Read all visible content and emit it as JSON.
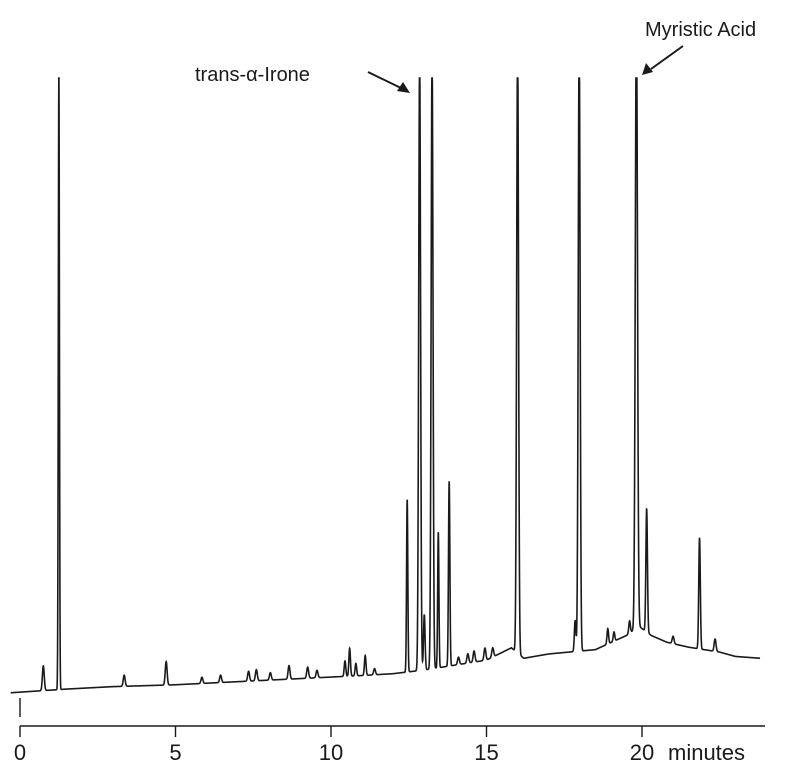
{
  "chart_data": {
    "type": "line",
    "title": "",
    "xlabel": "minutes",
    "ylabel": "",
    "xlim": [
      -0.3,
      24
    ],
    "ylim": [
      0,
      100
    ],
    "x_ticks": [
      0,
      5,
      10,
      15,
      20
    ],
    "x_tick_labels": [
      "0",
      "5",
      "10",
      "15",
      "20"
    ],
    "grid": false,
    "legend": "none",
    "line_color": "#1a1a1a",
    "baseline": [
      [
        -0.3,
        0.2
      ],
      [
        0.6,
        0.5
      ],
      [
        1.5,
        0.8
      ],
      [
        3.0,
        1.2
      ],
      [
        5.0,
        1.5
      ],
      [
        7.0,
        2.0
      ],
      [
        9.0,
        2.5
      ],
      [
        11.0,
        3.0
      ],
      [
        12.0,
        3.3
      ],
      [
        13.0,
        3.9
      ],
      [
        14.0,
        4.7
      ],
      [
        15.0,
        5.5
      ],
      [
        15.8,
        7.5
      ],
      [
        16.2,
        5.8
      ],
      [
        17.0,
        6.5
      ],
      [
        18.5,
        7.2
      ],
      [
        19.5,
        9.5
      ],
      [
        19.9,
        11.0
      ],
      [
        20.3,
        9.5
      ],
      [
        20.8,
        8.4
      ],
      [
        21.5,
        7.6
      ],
      [
        22.5,
        6.8
      ],
      [
        23.0,
        6.1
      ],
      [
        23.8,
        5.8
      ]
    ],
    "peaks": [
      {
        "rt": 0.75,
        "height": 4.0,
        "width": 0.03
      },
      {
        "rt": 1.25,
        "height": 100,
        "width": 0.018
      },
      {
        "rt": 3.35,
        "height": 1.8,
        "width": 0.03
      },
      {
        "rt": 4.7,
        "height": 3.8,
        "width": 0.03
      },
      {
        "rt": 5.85,
        "height": 1.0,
        "width": 0.03
      },
      {
        "rt": 6.45,
        "height": 1.2,
        "width": 0.03
      },
      {
        "rt": 7.35,
        "height": 1.6,
        "width": 0.03
      },
      {
        "rt": 7.6,
        "height": 1.8,
        "width": 0.03
      },
      {
        "rt": 8.05,
        "height": 1.2,
        "width": 0.03
      },
      {
        "rt": 8.65,
        "height": 2.2,
        "width": 0.03
      },
      {
        "rt": 9.25,
        "height": 1.8,
        "width": 0.03
      },
      {
        "rt": 9.55,
        "height": 1.2,
        "width": 0.03
      },
      {
        "rt": 10.45,
        "height": 2.5,
        "width": 0.025
      },
      {
        "rt": 10.6,
        "height": 4.5,
        "width": 0.025
      },
      {
        "rt": 10.8,
        "height": 2.0,
        "width": 0.025
      },
      {
        "rt": 11.1,
        "height": 3.2,
        "width": 0.025
      },
      {
        "rt": 11.4,
        "height": 1.0,
        "width": 0.03
      },
      {
        "rt": 12.45,
        "height": 28,
        "width": 0.02
      },
      {
        "rt": 12.85,
        "height": 100,
        "width": 0.03
      },
      {
        "rt": 13.0,
        "height": 9,
        "width": 0.025
      },
      {
        "rt": 13.25,
        "height": 100,
        "width": 0.03
      },
      {
        "rt": 13.45,
        "height": 22,
        "width": 0.02
      },
      {
        "rt": 13.8,
        "height": 30,
        "width": 0.022
      },
      {
        "rt": 14.1,
        "height": 1.2,
        "width": 0.03
      },
      {
        "rt": 14.4,
        "height": 1.5,
        "width": 0.03
      },
      {
        "rt": 14.6,
        "height": 1.8,
        "width": 0.03
      },
      {
        "rt": 14.95,
        "height": 2.0,
        "width": 0.03
      },
      {
        "rt": 15.2,
        "height": 1.5,
        "width": 0.03
      },
      {
        "rt": 16.0,
        "height": 100,
        "width": 0.03
      },
      {
        "rt": 17.85,
        "height": 5.0,
        "width": 0.025
      },
      {
        "rt": 17.98,
        "height": 100,
        "width": 0.03
      },
      {
        "rt": 18.9,
        "height": 2.5,
        "width": 0.025
      },
      {
        "rt": 19.1,
        "height": 1.5,
        "width": 0.025
      },
      {
        "rt": 19.6,
        "height": 2.0,
        "width": 0.025
      },
      {
        "rt": 19.82,
        "height": 100,
        "width": 0.035
      },
      {
        "rt": 20.15,
        "height": 20,
        "width": 0.025
      },
      {
        "rt": 21.0,
        "height": 1.2,
        "width": 0.03
      },
      {
        "rt": 21.85,
        "height": 18,
        "width": 0.025
      },
      {
        "rt": 22.35,
        "height": 2.0,
        "width": 0.03
      }
    ],
    "annotations": [
      {
        "text": "trans-α-Irone",
        "x": 12.85,
        "y": 100
      },
      {
        "text": "Myristic Acid",
        "x": 19.82,
        "y": 100
      }
    ]
  }
}
